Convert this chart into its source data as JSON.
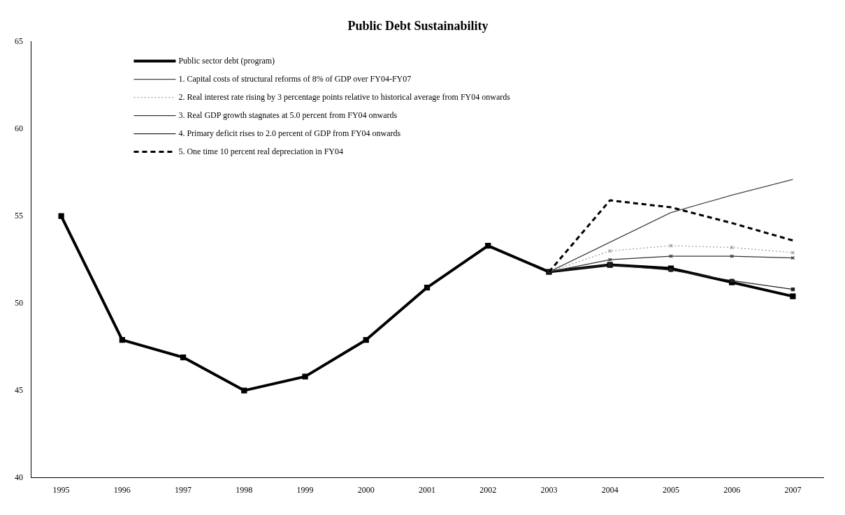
{
  "chart_data": {
    "type": "line",
    "title": "Public Debt Sustainability",
    "categories": [
      "1995",
      "1996",
      "1997",
      "1998",
      "1999",
      "2000",
      "2001",
      "2002",
      "2003",
      "2004",
      "2005",
      "2006",
      "2007"
    ],
    "series": [
      {
        "name": "Public sector debt (program)",
        "color": "#000000",
        "marker": "square",
        "line_style": "solid",
        "values": [
          55,
          47.9,
          46.9,
          45,
          45.8,
          47.9,
          50.9,
          53.3,
          51.8,
          52.2,
          52.0,
          51.2,
          50.4
        ]
      },
      {
        "name": "1. Capital costs of structural reforms of 8% of GDP over FY04-FY07",
        "color": "#444444",
        "marker": "none",
        "line_style": "solid",
        "values": [
          null,
          null,
          null,
          null,
          null,
          null,
          null,
          null,
          51.8,
          53.5,
          55.2,
          56.2,
          57.1
        ]
      },
      {
        "name": "2. Real interest rate rising by 3 percentage points relative to historical average from FY04 onwards",
        "color": "#999999",
        "marker": "cross",
        "line_style": "dotted",
        "values": [
          null,
          null,
          null,
          null,
          null,
          null,
          null,
          null,
          51.8,
          53.0,
          53.3,
          53.2,
          52.9
        ]
      },
      {
        "name": "3. Real GDP growth stagnates at 5.0 percent from FY04 onwards",
        "color": "#333333",
        "marker": "cross",
        "line_style": "solid",
        "values": [
          null,
          null,
          null,
          null,
          null,
          null,
          null,
          null,
          51.8,
          52.5,
          52.7,
          52.7,
          52.6
        ]
      },
      {
        "name": "4. Primary deficit rises to 2.0 percent of GDP from FY04 onwards",
        "color": "#222222",
        "marker": "square",
        "line_style": "solid",
        "values": [
          null,
          null,
          null,
          null,
          null,
          null,
          null,
          null,
          51.8,
          52.2,
          51.9,
          51.3,
          50.8
        ]
      },
      {
        "name": "5. One time 10 percent real depreciation in FY04",
        "color": "#000000",
        "marker": "none",
        "line_style": "dashed",
        "values": [
          null,
          null,
          null,
          null,
          null,
          null,
          null,
          null,
          51.8,
          55.9,
          55.5,
          54.6,
          53.6
        ]
      }
    ],
    "ylim": [
      40,
      65
    ],
    "yticks": [
      40,
      45,
      50,
      55,
      60,
      65
    ],
    "grid": false,
    "legend": "top left"
  }
}
